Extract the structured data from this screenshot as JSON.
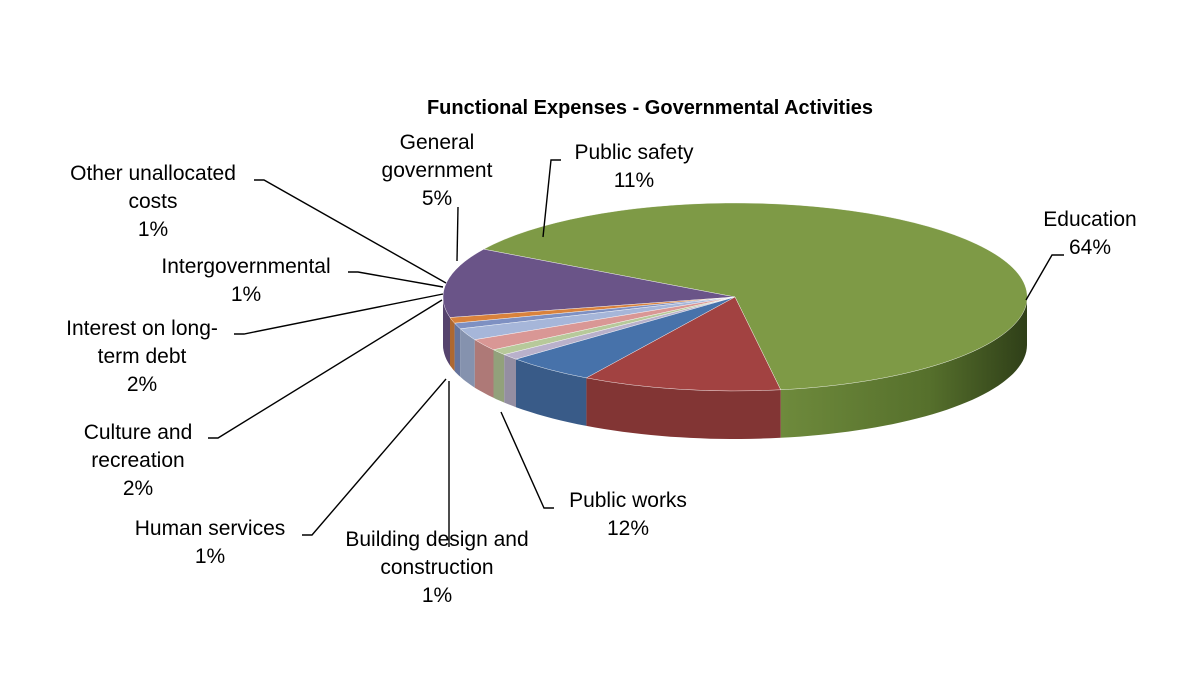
{
  "chart_data": {
    "type": "pie",
    "title": "Functional Expenses - Governmental Activities",
    "three_d": true,
    "legend": "none",
    "slices": [
      {
        "label": "Education",
        "value": 64,
        "pct_text": "64%",
        "color": "#7E9A46"
      },
      {
        "label": "Public works",
        "value": 12,
        "pct_text": "12%",
        "color": "#6A5488"
      },
      {
        "label": "Building design and construction",
        "value": 1,
        "pct_text": "1%",
        "color": "#D9823C"
      },
      {
        "label": "Human services",
        "value": 1,
        "pct_text": "1%",
        "color": "#7E90C2"
      },
      {
        "label": "Culture and recreation",
        "value": 2,
        "pct_text": "2%",
        "color": "#A6B6D9"
      },
      {
        "label": "Interest on long-term debt",
        "value": 2,
        "pct_text": "2%",
        "color": "#D99795"
      },
      {
        "label": "Intergovernmental",
        "value": 1,
        "pct_text": "1%",
        "color": "#B7C99A"
      },
      {
        "label": "Other unallocated costs",
        "value": 1,
        "pct_text": "1%",
        "color": "#B9B1CB"
      },
      {
        "label": "General government",
        "value": 5,
        "pct_text": "5%",
        "color": "#4772AA"
      },
      {
        "label": "Public safety",
        "value": 11,
        "pct_text": "11%",
        "color": "#A24241"
      }
    ],
    "label_lines": [
      [
        "Education",
        "64%"
      ],
      [
        "Public works",
        "12%"
      ],
      [
        "Building design and",
        "construction",
        "1%"
      ],
      [
        "Human services",
        "1%"
      ],
      [
        "Culture and",
        "recreation",
        "2%"
      ],
      [
        "Interest on long-",
        "term debt",
        "2%"
      ],
      [
        "Intergovernmental",
        "1%"
      ],
      [
        "Other unallocated",
        "costs",
        "1%"
      ],
      [
        "General",
        "government",
        "5%"
      ],
      [
        "Public safety",
        "11%"
      ]
    ]
  }
}
